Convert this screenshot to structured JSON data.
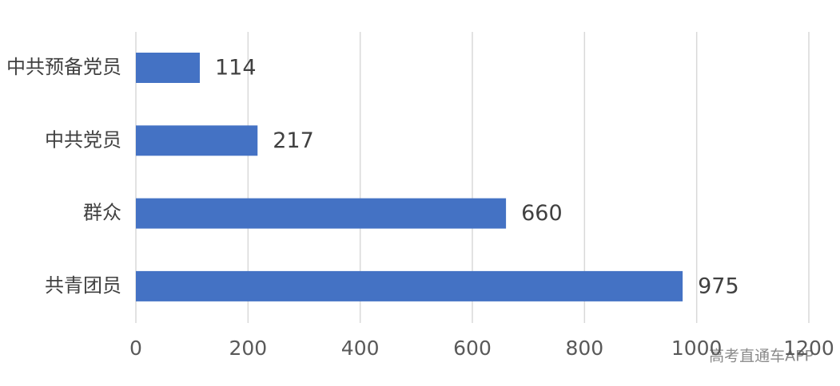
{
  "chart_data": {
    "type": "bar",
    "orientation": "horizontal",
    "categories": [
      "中共预备党员",
      "中共党员",
      "群众",
      "共青团员"
    ],
    "values": [
      114,
      217,
      660,
      975
    ],
    "color": "#4472c4",
    "xlim": [
      0,
      1200
    ],
    "xticks": [
      0,
      200,
      400,
      600,
      800,
      1000,
      1200
    ],
    "grid": true,
    "watermark": "高考直通车APP"
  }
}
